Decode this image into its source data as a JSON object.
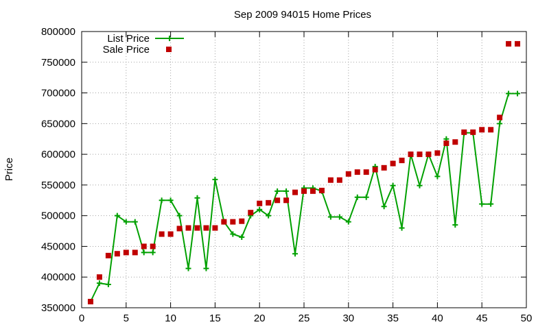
{
  "chart_data": {
    "type": "line",
    "title": "Sep 2009 94015 Home Prices",
    "ylabel": "Price",
    "xlabel": "",
    "xlim": [
      0,
      50
    ],
    "ylim": [
      350000,
      800000
    ],
    "xticks": [
      0,
      5,
      10,
      15,
      20,
      25,
      30,
      35,
      40,
      45,
      50
    ],
    "yticks": [
      350000,
      400000,
      450000,
      500000,
      550000,
      600000,
      650000,
      700000,
      750000,
      800000
    ],
    "grid": true,
    "legend_position": "top-left",
    "series": [
      {
        "name": "List Price",
        "style": "line+cross",
        "color": "#00a000",
        "x": [
          1,
          2,
          3,
          4,
          5,
          6,
          7,
          8,
          9,
          10,
          11,
          12,
          13,
          14,
          15,
          16,
          17,
          18,
          19,
          20,
          21,
          22,
          23,
          24,
          25,
          26,
          27,
          28,
          29,
          30,
          31,
          32,
          33,
          34,
          35,
          36,
          37,
          38,
          39,
          40,
          41,
          42,
          43,
          44,
          45,
          46,
          47,
          48,
          49
        ],
        "values": [
          360000,
          390000,
          388000,
          500000,
          490000,
          490000,
          440000,
          440000,
          525000,
          525000,
          500000,
          414000,
          529000,
          414000,
          559000,
          490000,
          470000,
          465000,
          500000,
          510000,
          500000,
          540000,
          540000,
          438000,
          545000,
          545000,
          540000,
          498000,
          498000,
          490000,
          530000,
          530000,
          580000,
          515000,
          549000,
          480000,
          600000,
          549000,
          600000,
          564000,
          625000,
          485000,
          635000,
          635000,
          519000,
          519000,
          650000,
          699000,
          699000
        ]
      },
      {
        "name": "Sale Price",
        "style": "square",
        "color": "#c00000",
        "x": [
          1,
          2,
          3,
          4,
          5,
          6,
          7,
          8,
          9,
          10,
          11,
          12,
          13,
          14,
          15,
          16,
          17,
          18,
          19,
          20,
          21,
          22,
          23,
          24,
          25,
          26,
          27,
          28,
          29,
          30,
          31,
          32,
          33,
          34,
          35,
          36,
          37,
          38,
          39,
          40,
          41,
          42,
          43,
          44,
          45,
          46,
          47,
          48,
          49
        ],
        "values": [
          360000,
          400000,
          435000,
          438000,
          440000,
          440000,
          450000,
          450000,
          470000,
          470000,
          479000,
          480000,
          480000,
          480000,
          480000,
          490000,
          490000,
          491000,
          505000,
          520000,
          521000,
          525000,
          525000,
          538000,
          540000,
          540000,
          541000,
          558000,
          558000,
          568000,
          571000,
          571000,
          575000,
          578000,
          585000,
          590000,
          600000,
          600000,
          600000,
          602000,
          618000,
          620000,
          636000,
          636000,
          640000,
          640000,
          660000,
          780000,
          780000
        ]
      }
    ]
  }
}
